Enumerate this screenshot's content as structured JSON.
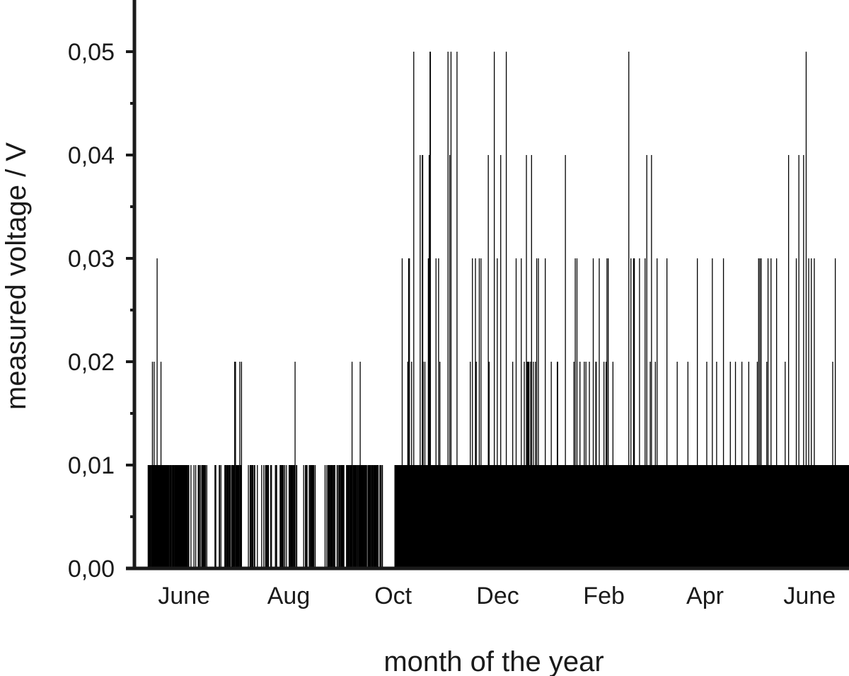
{
  "chart_data": {
    "type": "bar",
    "xlabel": "month of the year",
    "ylabel": "measured voltage / V",
    "ylim": [
      0,
      0.055
    ],
    "yticks": [
      {
        "value": 0.0,
        "label": "0,00"
      },
      {
        "value": 0.01,
        "label": "0,01"
      },
      {
        "value": 0.02,
        "label": "0,02"
      },
      {
        "value": 0.03,
        "label": "0,03"
      },
      {
        "value": 0.04,
        "label": "0,04"
      },
      {
        "value": 0.05,
        "label": "0,05"
      }
    ],
    "xlim": [
      "2013-05-03",
      "2014-06-24"
    ],
    "xticks": [
      {
        "date": "2013-06-01",
        "label": "June"
      },
      {
        "date": "2013-08-01",
        "label": "Aug"
      },
      {
        "date": "2013-10-01",
        "label": "Oct"
      },
      {
        "date": "2013-12-01",
        "label": "Dec"
      },
      {
        "date": "2014-02-01",
        "label": "Feb"
      },
      {
        "date": "2014-04-01",
        "label": "Apr"
      },
      {
        "date": "2014-06-01",
        "label": "June"
      }
    ],
    "grid": false,
    "legend": "none",
    "bar_color": "#000000",
    "series": [
      {
        "x_start": "2013-05-11",
        "interval_hours": 6,
        "values_hundredths": "11111110112111211111131111111121111111111111111101011110101111011111111111111111111111011111101100001000000100010000011010010011110110100100000000000000000011100000001100100000000110101111011110011111112021111111102111200000000000000010001110101100110000010000000001000010001011010100001010000000010110000000101110101001000100000111111111101102001100000000000000010001011100001010101111110010000000000000000000000100010011110111011011111000011001110101111111000001010110111111210111111110111011121111111101111110011111110111110111111111110001110011000000000000000000000000000011111111111111111311111111111121313111121111511111111111111411114421112111111131415511111111111131111131121111111111111111115111411511111111111115111111111111111111111111111111211113111111312111111311131111111111111111412111111111115111111311111114111111111111511111111111111211111113111111111113111111211114121212111214111211112113111311111111111111131111111111111211111111111112211111111111111111411111111111111111112113111311111121111111112111211111112111111113111112211111131111111111211112131131111111111211111111111111111111111111111111111151111311111313111111111113111111111111311141111111211411111111211131111111111111111111111311111111111111111111111211111111111111111111111121111111111111111111113111111111111111111111211111111111131111111112111111111111111311111111111111121111111111121111111111111121111111111111112111111111111111111121131131131111111111112113111111311111111111131111111111111111111211111114111111111111111113111114111111111141111151111131111131111113111111111111111111111111111111111111111111211111311111111111111111111111111111111111111111111111111111111111111111111111111111111111111111111111111111111111111111111111111111111111111111111111111111111111111111111111111111111111101111011111011011111111111111100000"
      }
    ]
  }
}
